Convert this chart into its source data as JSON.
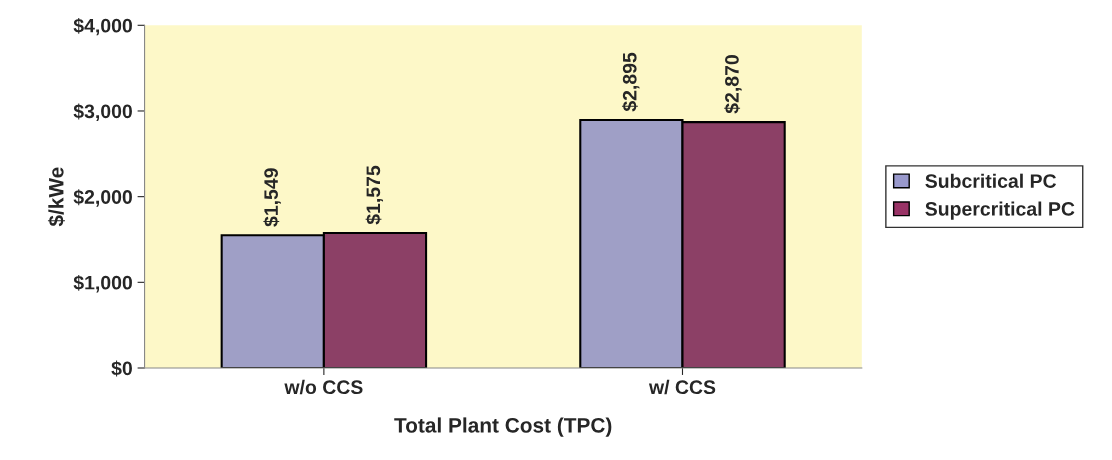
{
  "chart_data": {
    "type": "bar",
    "xlabel": "Total Plant Cost (TPC)",
    "ylabel": "$/kWe",
    "categories": [
      "w/o CCS",
      "w/ CCS"
    ],
    "series": [
      {
        "name": "Subcritical PC",
        "color": "#9999cc",
        "values": [
          1549,
          2895
        ],
        "value_labels": [
          "$1,549",
          "$2,895"
        ]
      },
      {
        "name": "Supercritical PC",
        "color": "#993366",
        "values": [
          1575,
          2870
        ],
        "value_labels": [
          "$1,575",
          "$2,870"
        ]
      }
    ],
    "ylim": [
      0,
      4000
    ],
    "yticks": [
      {
        "value": 0,
        "label": "$0"
      },
      {
        "value": 1000,
        "label": "$1,000"
      },
      {
        "value": 2000,
        "label": "$2,000"
      },
      {
        "value": 3000,
        "label": "$3,000"
      },
      {
        "value": 4000,
        "label": "$4,000"
      }
    ],
    "grid": false,
    "legend": "right"
  }
}
